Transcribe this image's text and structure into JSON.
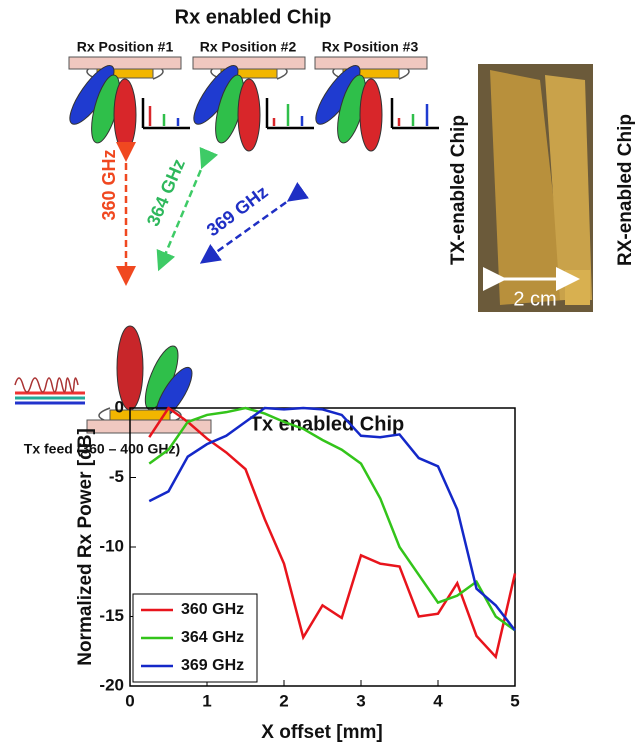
{
  "diagram": {
    "rx_title": "Rx enabled Chip",
    "rx_positions": [
      "Rx Position #1",
      "Rx Position #2",
      "Rx Position #3"
    ],
    "links": [
      "360 GHz",
      "364 GHz",
      "369 GHz"
    ],
    "tx_title": "Tx enabled Chip",
    "tx_feed": "Tx feed (360 – 400 GHz)",
    "photo_tx": "TX-enabled Chip",
    "photo_rx": "RX-enabled Chip",
    "photo_scale": "2 cm"
  },
  "chart_data": {
    "type": "line",
    "xlabel": "X offset [mm]",
    "ylabel": "Normalized Rx Power [dB]",
    "x": [
      0.25,
      0.5,
      0.75,
      1.0,
      1.25,
      1.5,
      1.75,
      2.0,
      2.25,
      2.5,
      2.75,
      3.0,
      3.25,
      3.5,
      3.75,
      4.0,
      4.25,
      4.5,
      4.75,
      5.0
    ],
    "series": [
      {
        "name": "360 GHz",
        "color": "#e8141c",
        "values": [
          -2.1,
          0,
          -1,
          -2.2,
          -3.2,
          -4.4,
          -8,
          -11.2,
          -16.5,
          -14.2,
          -15.1,
          -10.6,
          -11.2,
          -11.4,
          -15,
          -14.8,
          -12.6,
          -16.4,
          -17.9,
          -11.9
        ]
      },
      {
        "name": "364 GHz",
        "color": "#33c41a",
        "values": [
          -4,
          -3,
          -1,
          -0.5,
          -0.3,
          0,
          -0.4,
          -1,
          -1.5,
          -2.3,
          -3,
          -4,
          -6.5,
          -10,
          -12,
          -14,
          -13.5,
          -12.5,
          -15,
          -16
        ]
      },
      {
        "name": "369 GHz",
        "color": "#1428c8",
        "values": [
          -6.7,
          -6,
          -3.5,
          -2.6,
          -2,
          -1,
          0,
          -0.1,
          0,
          -0.1,
          -0.5,
          -2,
          -2.1,
          -1.9,
          -3.6,
          -4.2,
          -7.3,
          -13,
          -14.2,
          -16
        ]
      }
    ],
    "xlim": [
      0,
      5
    ],
    "xticks": [
      0,
      1,
      2,
      3,
      4,
      5
    ],
    "ylim": [
      -20,
      0
    ],
    "yticks": [
      -20,
      -15,
      -10,
      -5,
      0
    ],
    "legend": "lower-left"
  }
}
